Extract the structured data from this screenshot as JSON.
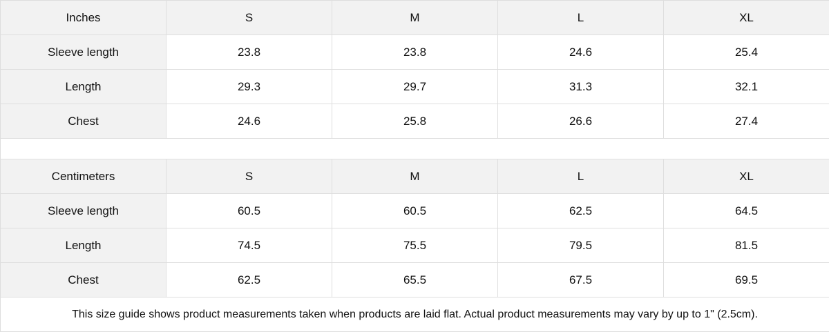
{
  "inches": {
    "header": [
      "Inches",
      "S",
      "M",
      "L",
      "XL"
    ],
    "rows": [
      {
        "label": "Sleeve length",
        "values": [
          "23.8",
          "23.8",
          "24.6",
          "25.4"
        ]
      },
      {
        "label": "Length",
        "values": [
          "29.3",
          "29.7",
          "31.3",
          "32.1"
        ]
      },
      {
        "label": "Chest",
        "values": [
          "24.6",
          "25.8",
          "26.6",
          "27.4"
        ]
      }
    ]
  },
  "centimeters": {
    "header": [
      "Centimeters",
      "S",
      "M",
      "L",
      "XL"
    ],
    "rows": [
      {
        "label": "Sleeve length",
        "values": [
          "60.5",
          "60.5",
          "62.5",
          "64.5"
        ]
      },
      {
        "label": "Length",
        "values": [
          "74.5",
          "75.5",
          "79.5",
          "81.5"
        ]
      },
      {
        "label": "Chest",
        "values": [
          "62.5",
          "65.5",
          "67.5",
          "69.5"
        ]
      }
    ]
  },
  "note": "This size guide shows product measurements taken when products are laid flat.  Actual product measurements may vary by up to 1\" (2.5cm).",
  "colors": {
    "header_bg": "#f2f2f2",
    "border": "#dedede"
  }
}
